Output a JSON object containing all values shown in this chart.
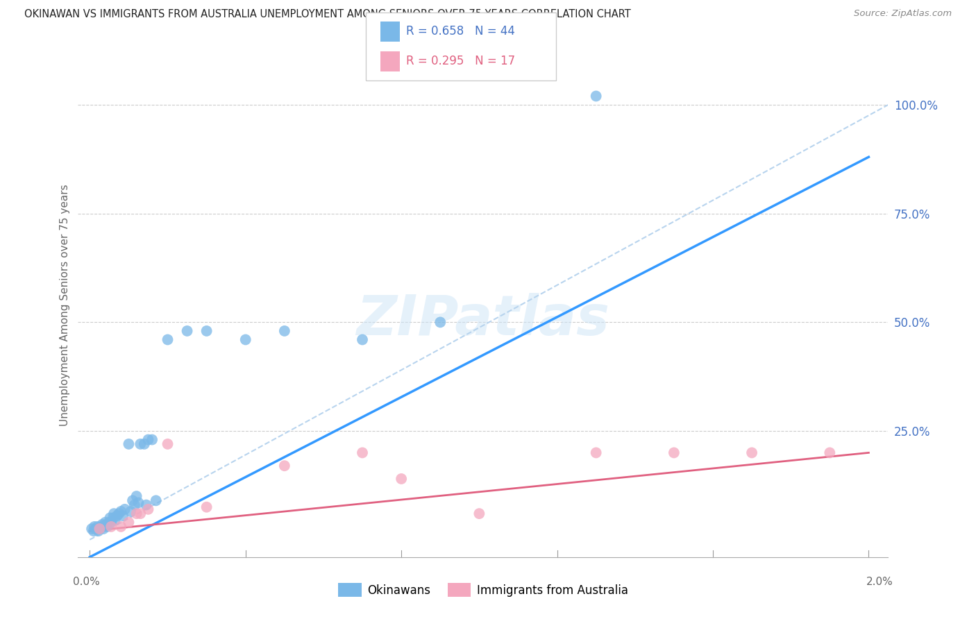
{
  "title": "OKINAWAN VS IMMIGRANTS FROM AUSTRALIA UNEMPLOYMENT AMONG SENIORS OVER 75 YEARS CORRELATION CHART",
  "source": "Source: ZipAtlas.com",
  "ylabel": "Unemployment Among Seniors over 75 years",
  "okinawan_color": "#7ab8e8",
  "australia_color": "#f4a7be",
  "okinawan_line_color": "#3399ff",
  "australia_line_color": "#e06080",
  "diagonal_color": "#b8d4ee",
  "watermark": "ZIPatlas",
  "background_color": "#ffffff",
  "grid_color": "#cccccc",
  "okinawan_x": [
    5e-05,
    0.0001,
    0.00012,
    0.00015,
    0.0002,
    0.00022,
    0.00025,
    0.0003,
    0.00032,
    0.00035,
    0.0004,
    0.00042,
    0.00045,
    0.0005,
    0.00052,
    0.00055,
    0.0006,
    0.00062,
    0.00065,
    0.0007,
    0.00075,
    0.0008,
    0.00085,
    0.0009,
    0.001,
    0.00105,
    0.0011,
    0.00115,
    0.0012,
    0.00125,
    0.0013,
    0.0014,
    0.00145,
    0.0015,
    0.0016,
    0.0017,
    0.002,
    0.0025,
    0.003,
    0.004,
    0.005,
    0.007,
    0.009,
    0.013
  ],
  "okinawan_y": [
    0.025,
    0.02,
    0.03,
    0.025,
    0.03,
    0.02,
    0.025,
    0.03,
    0.035,
    0.025,
    0.04,
    0.035,
    0.03,
    0.04,
    0.05,
    0.04,
    0.05,
    0.06,
    0.045,
    0.055,
    0.06,
    0.065,
    0.055,
    0.07,
    0.22,
    0.065,
    0.09,
    0.08,
    0.1,
    0.085,
    0.22,
    0.22,
    0.08,
    0.23,
    0.23,
    0.09,
    0.46,
    0.48,
    0.48,
    0.46,
    0.48,
    0.46,
    0.5,
    1.02
  ],
  "australia_x": [
    0.00025,
    0.00055,
    0.0008,
    0.001,
    0.0012,
    0.0013,
    0.0015,
    0.002,
    0.003,
    0.005,
    0.007,
    0.008,
    0.01,
    0.013,
    0.015,
    0.017,
    0.019
  ],
  "australia_y": [
    0.025,
    0.03,
    0.03,
    0.04,
    0.06,
    0.06,
    0.07,
    0.22,
    0.075,
    0.17,
    0.2,
    0.14,
    0.06,
    0.2,
    0.2,
    0.2,
    0.2
  ],
  "xlim_min": -0.0003,
  "xlim_max": 0.0205,
  "ylim_min": -0.04,
  "ylim_max": 1.12,
  "yticks": [
    0.0,
    0.25,
    0.5,
    0.75,
    1.0
  ],
  "yticklabels": [
    "",
    "25.0%",
    "50.0%",
    "75.0%",
    "100.0%"
  ],
  "ok_line_x0": 0.0,
  "ok_line_x1": 0.02,
  "ok_line_y0": -0.04,
  "ok_line_y1": 0.88,
  "au_line_x0": 0.0,
  "au_line_x1": 0.02,
  "au_line_y0": 0.02,
  "au_line_y1": 0.2
}
